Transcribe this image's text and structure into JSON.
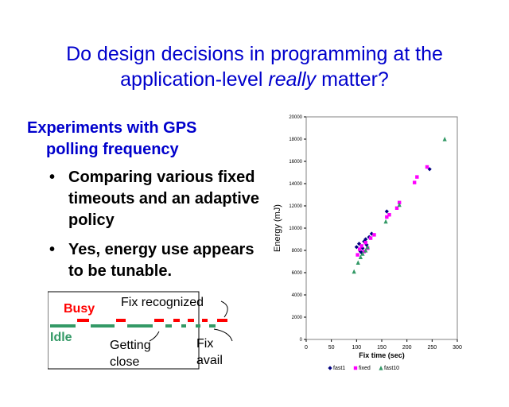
{
  "title": {
    "line1": "Do design decisions in programming at the",
    "line2_prefix": "application-level ",
    "line2_em": "really",
    "line2_suffix": " matter?"
  },
  "heading": {
    "line1": "Experiments with GPS",
    "line2": "polling frequency"
  },
  "bullets": [
    {
      "bullet": "•",
      "text": "Comparing various fixed timeouts and an adaptive policy"
    },
    {
      "bullet": "•",
      "text": "Yes, energy use appears to be tunable."
    }
  ],
  "diagram": {
    "busy": "Busy",
    "idle": "Idle",
    "fix_recognized": "Fix recognized",
    "getting_close_1": "Getting",
    "getting_close_2": "close",
    "fix_avail_1": "Fix",
    "fix_avail_2": "avail",
    "colors": {
      "busy": "#ff0000",
      "idle": "#339966"
    }
  },
  "chart_data": {
    "type": "scatter",
    "title": "",
    "xlabel": "Fix time (sec)",
    "ylabel": "Energy (mJ)",
    "xlim": [
      0,
      300
    ],
    "ylim": [
      0,
      20000
    ],
    "xticks": [
      "0",
      "50",
      "100",
      "150",
      "200",
      "250",
      "300"
    ],
    "yticks": [
      "0",
      "2000",
      "4000",
      "6000",
      "8000",
      "10000",
      "12000",
      "14000",
      "16000",
      "18000",
      "20000"
    ],
    "legend_position": "bottom",
    "series": [
      {
        "name": "fast1",
        "marker": "diamond",
        "color": "#000080",
        "points": [
          [
            100,
            8300
          ],
          [
            105,
            8600
          ],
          [
            108,
            7900
          ],
          [
            112,
            8200
          ],
          [
            115,
            8800
          ],
          [
            118,
            9000
          ],
          [
            120,
            8500
          ],
          [
            125,
            9200
          ],
          [
            130,
            9500
          ],
          [
            110,
            7800
          ],
          [
            160,
            11500
          ],
          [
            245,
            15300
          ]
        ]
      },
      {
        "name": "fixed",
        "marker": "square",
        "color": "#ff00ff",
        "points": [
          [
            102,
            7600
          ],
          [
            106,
            8100
          ],
          [
            110,
            8400
          ],
          [
            115,
            7900
          ],
          [
            118,
            8700
          ],
          [
            122,
            8200
          ],
          [
            128,
            9100
          ],
          [
            135,
            9400
          ],
          [
            160,
            11000
          ],
          [
            165,
            11200
          ],
          [
            180,
            11800
          ],
          [
            185,
            12300
          ],
          [
            215,
            14100
          ],
          [
            220,
            14600
          ],
          [
            240,
            15500
          ]
        ]
      },
      {
        "name": "fast10",
        "marker": "triangle",
        "color": "#339966",
        "points": [
          [
            95,
            6100
          ],
          [
            103,
            6900
          ],
          [
            108,
            7400
          ],
          [
            112,
            7700
          ],
          [
            118,
            8000
          ],
          [
            122,
            8300
          ],
          [
            158,
            10600
          ],
          [
            185,
            12100
          ],
          [
            275,
            18000
          ]
        ]
      }
    ]
  }
}
